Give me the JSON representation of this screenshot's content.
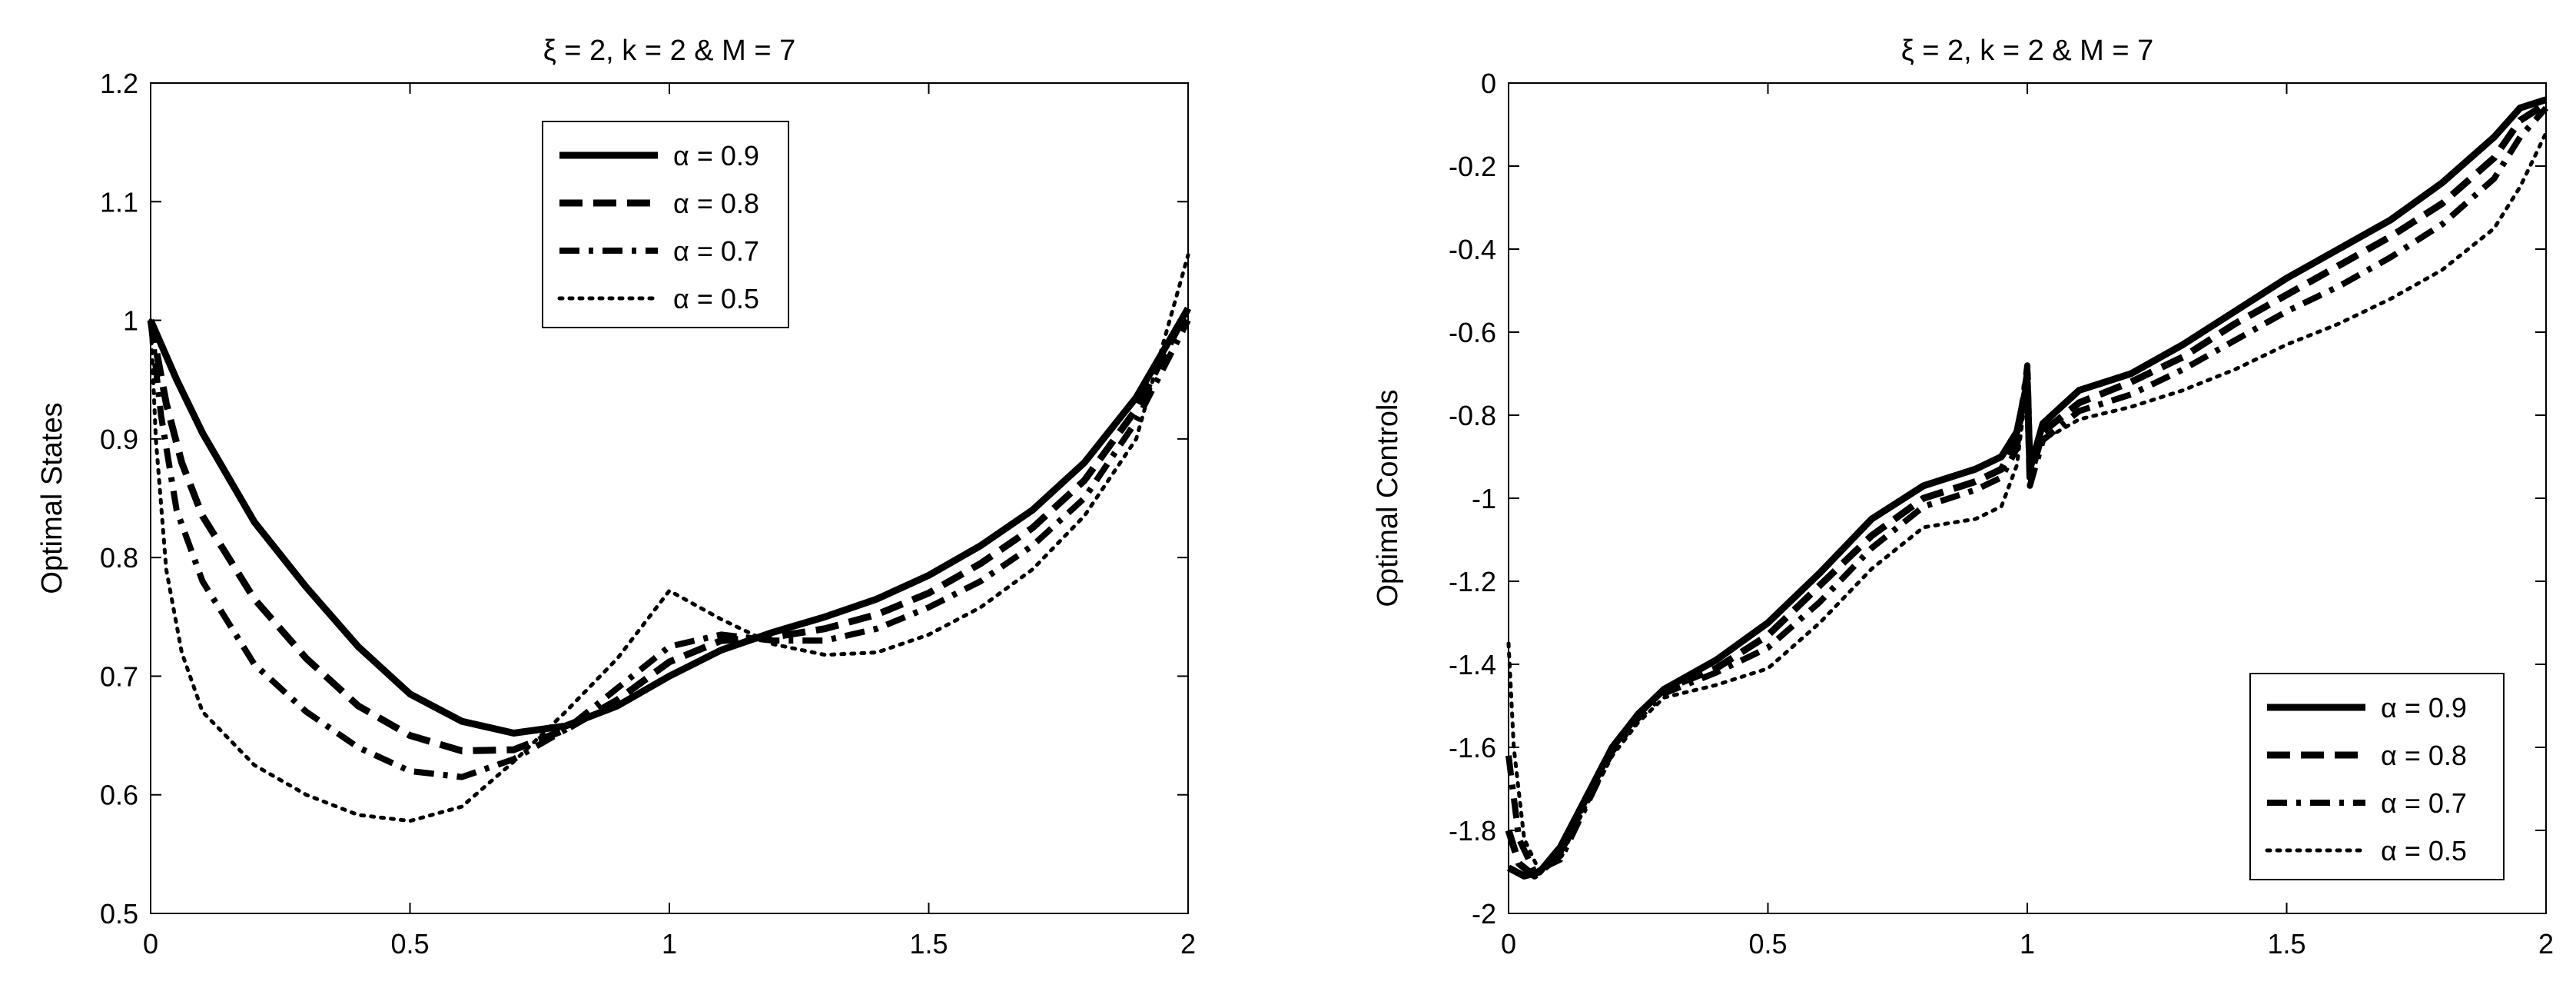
{
  "chart_data": [
    {
      "type": "line",
      "title": "ξ = 2, k = 2 & M = 7",
      "xlabel": "",
      "ylabel": "Optimal States",
      "xlim": [
        0,
        2
      ],
      "ylim": [
        0.5,
        1.2
      ],
      "xticks": [
        0,
        0.5,
        1,
        1.5,
        2
      ],
      "xtick_labels": [
        "0",
        "0.5",
        "1",
        "1.5",
        "2"
      ],
      "yticks": [
        0.5,
        0.6,
        0.7,
        0.8,
        0.9,
        1.0,
        1.1,
        1.2
      ],
      "ytick_labels": [
        "0.5",
        "0.6",
        "0.7",
        "0.8",
        "0.9",
        "1",
        "1.1",
        "1.2"
      ],
      "grid": false,
      "legend_position": "top-center",
      "series": [
        {
          "name": "α = 0.9",
          "style": "solid",
          "points": [
            [
              0,
              1.0
            ],
            [
              0.05,
              0.95
            ],
            [
              0.1,
              0.905
            ],
            [
              0.2,
              0.83
            ],
            [
              0.3,
              0.775
            ],
            [
              0.4,
              0.725
            ],
            [
              0.5,
              0.685
            ],
            [
              0.6,
              0.662
            ],
            [
              0.7,
              0.652
            ],
            [
              0.8,
              0.658
            ],
            [
              0.9,
              0.675
            ],
            [
              1.0,
              0.7
            ],
            [
              1.1,
              0.722
            ],
            [
              1.2,
              0.737
            ],
            [
              1.3,
              0.75
            ],
            [
              1.4,
              0.765
            ],
            [
              1.5,
              0.785
            ],
            [
              1.6,
              0.81
            ],
            [
              1.7,
              0.84
            ],
            [
              1.8,
              0.88
            ],
            [
              1.9,
              0.935
            ],
            [
              2.0,
              1.01
            ]
          ]
        },
        {
          "name": "α = 0.8",
          "style": "dashed",
          "points": [
            [
              0,
              1.0
            ],
            [
              0.03,
              0.93
            ],
            [
              0.06,
              0.88
            ],
            [
              0.1,
              0.835
            ],
            [
              0.2,
              0.765
            ],
            [
              0.3,
              0.715
            ],
            [
              0.4,
              0.675
            ],
            [
              0.5,
              0.65
            ],
            [
              0.6,
              0.637
            ],
            [
              0.7,
              0.638
            ],
            [
              0.8,
              0.655
            ],
            [
              0.9,
              0.68
            ],
            [
              1.0,
              0.712
            ],
            [
              1.1,
              0.73
            ],
            [
              1.2,
              0.733
            ],
            [
              1.3,
              0.74
            ],
            [
              1.4,
              0.752
            ],
            [
              1.5,
              0.77
            ],
            [
              1.6,
              0.795
            ],
            [
              1.7,
              0.825
            ],
            [
              1.8,
              0.865
            ],
            [
              1.9,
              0.925
            ],
            [
              2.0,
              1.01
            ]
          ]
        },
        {
          "name": "α = 0.7",
          "style": "dashdot",
          "points": [
            [
              0,
              1.0
            ],
            [
              0.02,
              0.92
            ],
            [
              0.05,
              0.84
            ],
            [
              0.1,
              0.78
            ],
            [
              0.2,
              0.71
            ],
            [
              0.3,
              0.67
            ],
            [
              0.4,
              0.64
            ],
            [
              0.5,
              0.62
            ],
            [
              0.6,
              0.615
            ],
            [
              0.7,
              0.63
            ],
            [
              0.8,
              0.655
            ],
            [
              0.9,
              0.69
            ],
            [
              1.0,
              0.725
            ],
            [
              1.1,
              0.735
            ],
            [
              1.2,
              0.73
            ],
            [
              1.3,
              0.73
            ],
            [
              1.4,
              0.74
            ],
            [
              1.5,
              0.758
            ],
            [
              1.6,
              0.78
            ],
            [
              1.7,
              0.81
            ],
            [
              1.8,
              0.85
            ],
            [
              1.9,
              0.915
            ],
            [
              2.0,
              1.0
            ]
          ]
        },
        {
          "name": "α = 0.5",
          "style": "dotted",
          "points": [
            [
              0,
              1.0
            ],
            [
              0.01,
              0.9
            ],
            [
              0.03,
              0.79
            ],
            [
              0.06,
              0.72
            ],
            [
              0.1,
              0.67
            ],
            [
              0.2,
              0.625
            ],
            [
              0.3,
              0.6
            ],
            [
              0.4,
              0.583
            ],
            [
              0.5,
              0.578
            ],
            [
              0.6,
              0.59
            ],
            [
              0.7,
              0.628
            ],
            [
              0.8,
              0.67
            ],
            [
              0.9,
              0.715
            ],
            [
              1.0,
              0.772
            ],
            [
              1.05,
              0.76
            ],
            [
              1.1,
              0.748
            ],
            [
              1.2,
              0.727
            ],
            [
              1.3,
              0.718
            ],
            [
              1.4,
              0.72
            ],
            [
              1.5,
              0.735
            ],
            [
              1.6,
              0.758
            ],
            [
              1.7,
              0.79
            ],
            [
              1.8,
              0.835
            ],
            [
              1.9,
              0.9
            ],
            [
              2.0,
              1.055
            ]
          ]
        }
      ]
    },
    {
      "type": "line",
      "title": "ξ = 2, k = 2 & M = 7",
      "xlabel": "",
      "ylabel": "Optimal Controls",
      "xlim": [
        0,
        2
      ],
      "ylim": [
        -2,
        0
      ],
      "xticks": [
        0,
        0.5,
        1,
        1.5,
        2
      ],
      "xtick_labels": [
        "0",
        "0.5",
        "1",
        "1.5",
        "2"
      ],
      "yticks": [
        -2,
        -1.8,
        -1.6,
        -1.4,
        -1.2,
        -1,
        -0.8,
        -0.6,
        -0.4,
        -0.2,
        0
      ],
      "ytick_labels": [
        "-2",
        "-1.8",
        "-1.6",
        "-1.4",
        "-1.2",
        "-1",
        "-0.8",
        "-0.6",
        "-0.4",
        "-0.2",
        "0"
      ],
      "grid": false,
      "legend_position": "bottom-right",
      "series": [
        {
          "name": "α = 0.9",
          "style": "solid",
          "points": [
            [
              0,
              -1.89
            ],
            [
              0.03,
              -1.91
            ],
            [
              0.06,
              -1.9
            ],
            [
              0.1,
              -1.84
            ],
            [
              0.15,
              -1.72
            ],
            [
              0.2,
              -1.6
            ],
            [
              0.25,
              -1.52
            ],
            [
              0.3,
              -1.46
            ],
            [
              0.4,
              -1.39
            ],
            [
              0.5,
              -1.3
            ],
            [
              0.6,
              -1.18
            ],
            [
              0.7,
              -1.05
            ],
            [
              0.8,
              -0.97
            ],
            [
              0.9,
              -0.93
            ],
            [
              0.95,
              -0.9
            ],
            [
              0.98,
              -0.84
            ],
            [
              1.0,
              -0.72
            ],
            [
              1.005,
              -0.93
            ],
            [
              1.03,
              -0.82
            ],
            [
              1.1,
              -0.74
            ],
            [
              1.2,
              -0.7
            ],
            [
              1.3,
              -0.63
            ],
            [
              1.4,
              -0.55
            ],
            [
              1.5,
              -0.47
            ],
            [
              1.6,
              -0.4
            ],
            [
              1.7,
              -0.33
            ],
            [
              1.8,
              -0.24
            ],
            [
              1.9,
              -0.13
            ],
            [
              1.95,
              -0.06
            ],
            [
              2.0,
              -0.04
            ]
          ]
        },
        {
          "name": "α = 0.8",
          "style": "dashed",
          "points": [
            [
              0,
              -1.8
            ],
            [
              0.02,
              -1.88
            ],
            [
              0.05,
              -1.91
            ],
            [
              0.1,
              -1.86
            ],
            [
              0.15,
              -1.72
            ],
            [
              0.2,
              -1.6
            ],
            [
              0.25,
              -1.52
            ],
            [
              0.3,
              -1.46
            ],
            [
              0.4,
              -1.41
            ],
            [
              0.5,
              -1.33
            ],
            [
              0.6,
              -1.21
            ],
            [
              0.7,
              -1.09
            ],
            [
              0.8,
              -1.0
            ],
            [
              0.9,
              -0.96
            ],
            [
              0.95,
              -0.93
            ],
            [
              0.98,
              -0.86
            ],
            [
              1.0,
              -0.7
            ],
            [
              1.005,
              -0.95
            ],
            [
              1.03,
              -0.84
            ],
            [
              1.1,
              -0.77
            ],
            [
              1.2,
              -0.72
            ],
            [
              1.3,
              -0.66
            ],
            [
              1.4,
              -0.58
            ],
            [
              1.5,
              -0.51
            ],
            [
              1.6,
              -0.44
            ],
            [
              1.7,
              -0.37
            ],
            [
              1.8,
              -0.29
            ],
            [
              1.9,
              -0.18
            ],
            [
              1.95,
              -0.09
            ],
            [
              2.0,
              -0.05
            ]
          ]
        },
        {
          "name": "α = 0.7",
          "style": "dashdot",
          "points": [
            [
              0,
              -1.62
            ],
            [
              0.02,
              -1.82
            ],
            [
              0.05,
              -1.9
            ],
            [
              0.1,
              -1.87
            ],
            [
              0.15,
              -1.74
            ],
            [
              0.2,
              -1.61
            ],
            [
              0.25,
              -1.53
            ],
            [
              0.3,
              -1.47
            ],
            [
              0.4,
              -1.42
            ],
            [
              0.5,
              -1.36
            ],
            [
              0.6,
              -1.25
            ],
            [
              0.7,
              -1.12
            ],
            [
              0.8,
              -1.02
            ],
            [
              0.9,
              -0.98
            ],
            [
              0.95,
              -0.95
            ],
            [
              0.98,
              -0.88
            ],
            [
              1.0,
              -0.68
            ],
            [
              1.005,
              -0.97
            ],
            [
              1.03,
              -0.86
            ],
            [
              1.1,
              -0.79
            ],
            [
              1.2,
              -0.75
            ],
            [
              1.3,
              -0.69
            ],
            [
              1.4,
              -0.62
            ],
            [
              1.5,
              -0.55
            ],
            [
              1.6,
              -0.49
            ],
            [
              1.7,
              -0.42
            ],
            [
              1.8,
              -0.34
            ],
            [
              1.9,
              -0.23
            ],
            [
              1.95,
              -0.13
            ],
            [
              2.0,
              -0.06
            ]
          ]
        },
        {
          "name": "α = 0.5",
          "style": "dotted",
          "points": [
            [
              0,
              -1.35
            ],
            [
              0.01,
              -1.6
            ],
            [
              0.03,
              -1.82
            ],
            [
              0.06,
              -1.9
            ],
            [
              0.1,
              -1.86
            ],
            [
              0.15,
              -1.74
            ],
            [
              0.2,
              -1.62
            ],
            [
              0.25,
              -1.54
            ],
            [
              0.3,
              -1.48
            ],
            [
              0.4,
              -1.45
            ],
            [
              0.5,
              -1.41
            ],
            [
              0.6,
              -1.3
            ],
            [
              0.7,
              -1.17
            ],
            [
              0.8,
              -1.07
            ],
            [
              0.9,
              -1.05
            ],
            [
              0.95,
              -1.02
            ],
            [
              0.98,
              -0.92
            ],
            [
              1.0,
              -0.72
            ],
            [
              1.005,
              -0.9
            ],
            [
              1.03,
              -0.86
            ],
            [
              1.1,
              -0.81
            ],
            [
              1.2,
              -0.78
            ],
            [
              1.3,
              -0.74
            ],
            [
              1.4,
              -0.69
            ],
            [
              1.5,
              -0.63
            ],
            [
              1.6,
              -0.58
            ],
            [
              1.7,
              -0.52
            ],
            [
              1.8,
              -0.45
            ],
            [
              1.9,
              -0.35
            ],
            [
              1.95,
              -0.25
            ],
            [
              2.0,
              -0.12
            ]
          ]
        }
      ]
    }
  ]
}
